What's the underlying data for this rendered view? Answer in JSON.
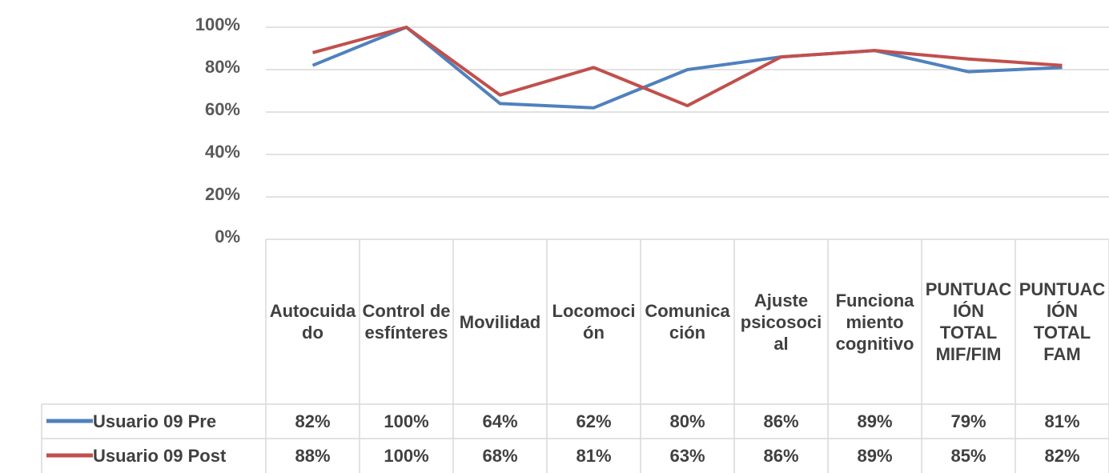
{
  "chart_data": {
    "type": "line",
    "categories": [
      "Autocuidado",
      "Control de esfínteres",
      "Movilidad",
      "Locomoción",
      "Comunicación",
      "Ajuste psicosocial",
      "Funcionamiento cognitivo",
      "PUNTUACIÓN TOTAL MIF/FIM",
      "PUNTUACIÓN TOTAL FAM"
    ],
    "series": [
      {
        "name": "Usuario 09 Pre",
        "color": "#4f81bd",
        "values": [
          82,
          100,
          64,
          62,
          80,
          86,
          89,
          79,
          81
        ],
        "value_labels": [
          "82%",
          "100%",
          "64%",
          "62%",
          "80%",
          "86%",
          "89%",
          "79%",
          "81%"
        ]
      },
      {
        "name": "Usuario 09 Post",
        "color": "#c0504d",
        "values": [
          88,
          100,
          68,
          81,
          63,
          86,
          89,
          85,
          82
        ],
        "value_labels": [
          "88%",
          "100%",
          "68%",
          "81%",
          "63%",
          "86%",
          "89%",
          "85%",
          "82%"
        ]
      }
    ],
    "ylim": [
      0,
      100
    ],
    "yticks": [
      {
        "value": 0,
        "label": "0%"
      },
      {
        "value": 20,
        "label": "20%"
      },
      {
        "value": 40,
        "label": "40%"
      },
      {
        "value": 60,
        "label": "60%"
      },
      {
        "value": 80,
        "label": "80%"
      },
      {
        "value": 100,
        "label": "100%"
      }
    ],
    "grid": true
  }
}
